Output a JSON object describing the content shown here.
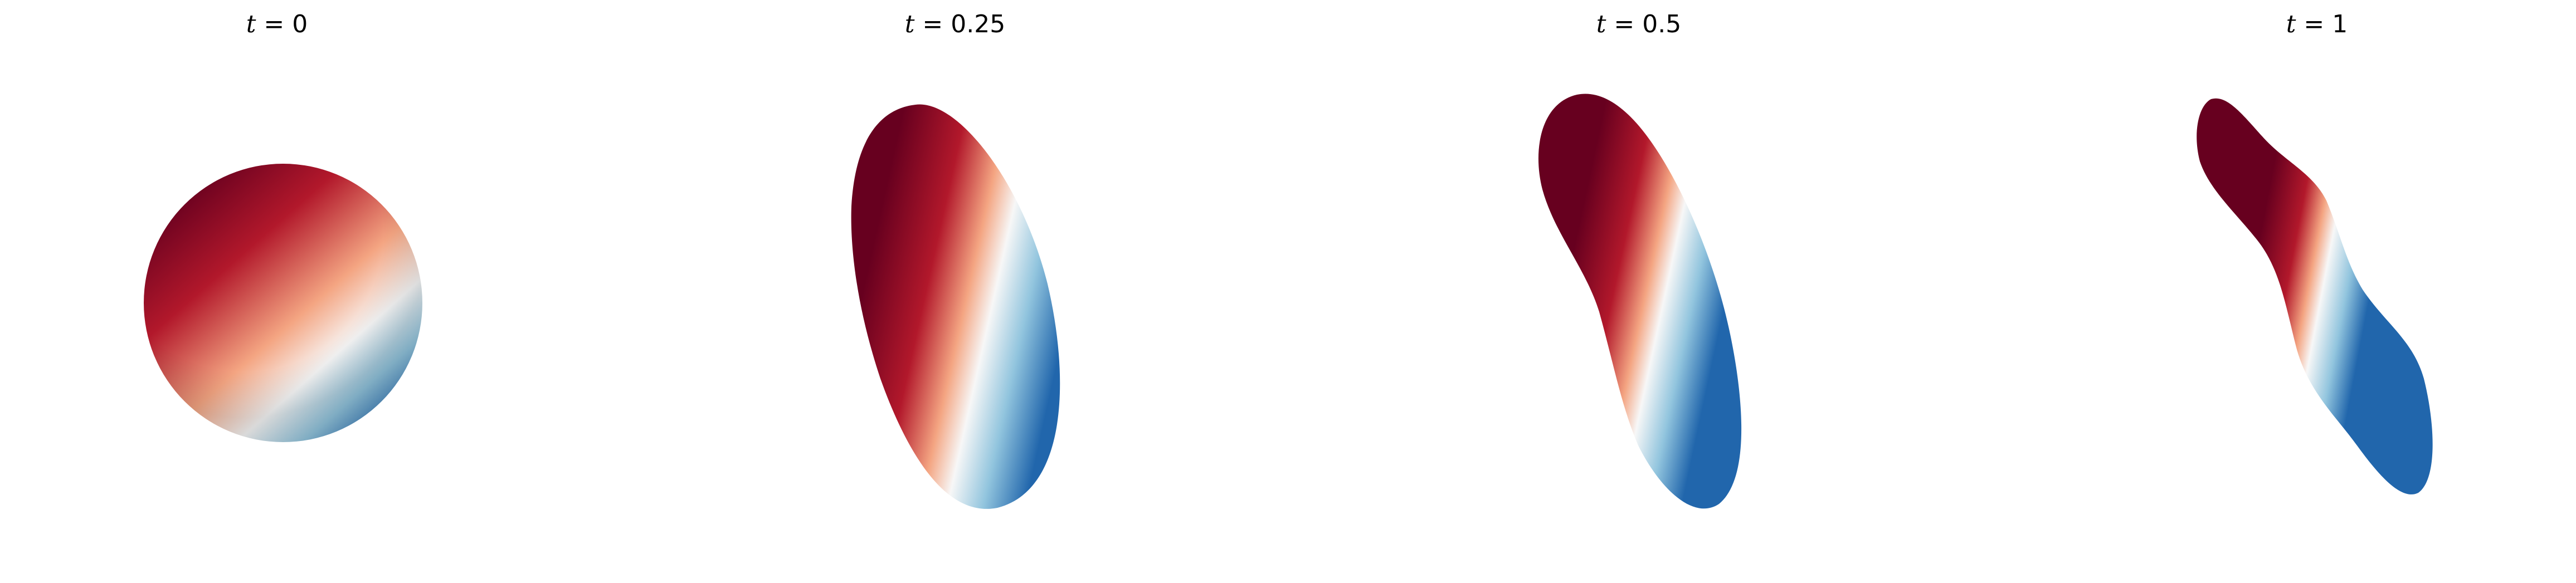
{
  "panels": [
    {
      "variable": "t",
      "equals": "=",
      "value": "0"
    },
    {
      "variable": "t",
      "equals": "=",
      "value": "0.25"
    },
    {
      "variable": "t",
      "equals": "=",
      "value": "0.5"
    },
    {
      "variable": "t",
      "equals": "=",
      "value": "1"
    }
  ],
  "colormap": {
    "name": "RdBu",
    "dark_red": "#67001f",
    "red": "#b2182b",
    "light_red": "#f4a582",
    "white": "#f7f7f7",
    "light_blue": "#92c5de",
    "blue": "#2166ac"
  }
}
